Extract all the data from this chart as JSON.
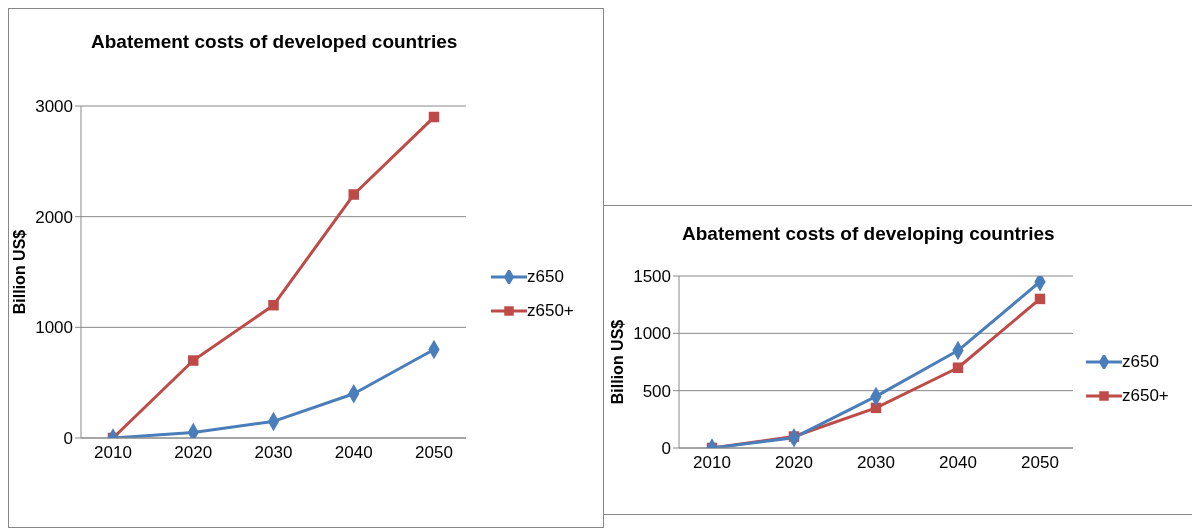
{
  "chart_data": [
    {
      "type": "line",
      "title": "Abatement costs of developed countries",
      "ylabel": "Billion US$",
      "categories": [
        "2010",
        "2020",
        "2030",
        "2040",
        "2050"
      ],
      "series": [
        {
          "name": "z650",
          "color": "#4a7ebb",
          "marker": "diamond",
          "values": [
            0,
            50,
            150,
            400,
            800
          ]
        },
        {
          "name": "z650+",
          "color": "#be4b48",
          "marker": "square",
          "values": [
            0,
            700,
            1200,
            2200,
            2900
          ]
        }
      ],
      "ylim": [
        0,
        3000
      ],
      "yticks": [
        0,
        1000,
        2000,
        3000
      ],
      "grid": "y",
      "legend": "right"
    },
    {
      "type": "line",
      "title": "Abatement costs of developing countries",
      "ylabel": "Billion US$",
      "categories": [
        "2010",
        "2020",
        "2030",
        "2040",
        "2050"
      ],
      "series": [
        {
          "name": "z650",
          "color": "#4a7ebb",
          "marker": "diamond",
          "values": [
            0,
            90,
            450,
            850,
            1450
          ]
        },
        {
          "name": "z650+",
          "color": "#be4b48",
          "marker": "square",
          "values": [
            0,
            100,
            350,
            700,
            1300
          ]
        }
      ],
      "ylim": [
        0,
        1500
      ],
      "yticks": [
        0,
        500,
        1000,
        1500
      ],
      "grid": "y",
      "legend": "right"
    }
  ]
}
